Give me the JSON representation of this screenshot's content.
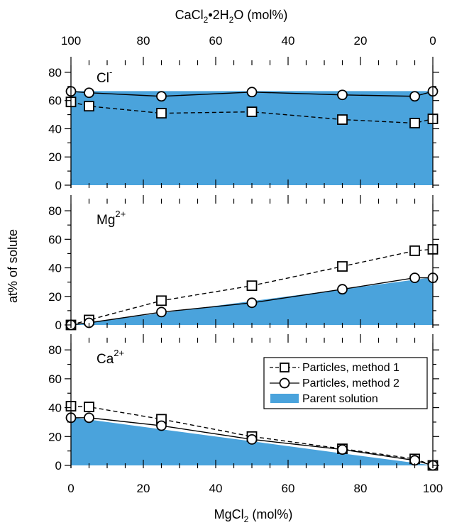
{
  "chart_data": {
    "type": "line",
    "x_axis": {
      "title": "MgCl",
      "title_sub": "2",
      "title_tail": " (mol%)",
      "range": [
        0,
        100
      ],
      "ticks": [
        "0",
        "20",
        "40",
        "60",
        "80",
        "100"
      ]
    },
    "top_axis": {
      "title": "CaCl",
      "title_sub1": "2",
      "title_mid": "•2H",
      "title_sub2": "2",
      "title_tail": "O (mol%)",
      "range": [
        100,
        0
      ],
      "ticks": [
        "100",
        "80",
        "60",
        "40",
        "20",
        "0"
      ]
    },
    "y_axis": {
      "title": "at% of solute",
      "range": [
        0,
        85
      ],
      "ticks": [
        "0",
        "20",
        "40",
        "60",
        "80"
      ]
    },
    "x": [
      0,
      5,
      25,
      50,
      75,
      95,
      100
    ],
    "legend": {
      "method1": "Particles, method 1",
      "method2": "Particles, method 2",
      "parent": "Parent solution",
      "placement": "top-right of bottom panel"
    },
    "colors": {
      "parent_fill": "#4aa3dc",
      "line": "#000000",
      "marker_fill": "#ffffff"
    },
    "panels": [
      {
        "ion": "Cl",
        "ion_sup": "-",
        "method1": [
          59,
          56,
          51,
          52,
          46.5,
          44,
          47
        ],
        "method2": [
          66.5,
          65.5,
          63,
          66,
          64,
          63,
          66.5
        ],
        "parent": [
          66.7,
          66.7,
          66.7,
          66.7,
          66.7,
          66.7,
          66.7
        ]
      },
      {
        "ion": "Mg",
        "ion_sup": "2+",
        "method1": [
          0,
          3.5,
          17,
          27.5,
          41,
          52,
          53
        ],
        "method2": [
          0,
          1.5,
          9,
          15.5,
          25,
          33,
          33
        ],
        "parent": [
          0,
          1.7,
          8.3,
          16.7,
          25,
          31.7,
          33.3
        ]
      },
      {
        "ion": "Ca",
        "ion_sup": "2+",
        "method1": [
          41,
          40.5,
          32,
          20,
          11.5,
          4.5,
          0
        ],
        "method2": [
          33,
          33,
          27.5,
          18,
          11,
          3.5,
          0
        ],
        "parent": [
          33.3,
          31.7,
          25,
          16.7,
          8.3,
          1.7,
          0
        ]
      }
    ]
  }
}
